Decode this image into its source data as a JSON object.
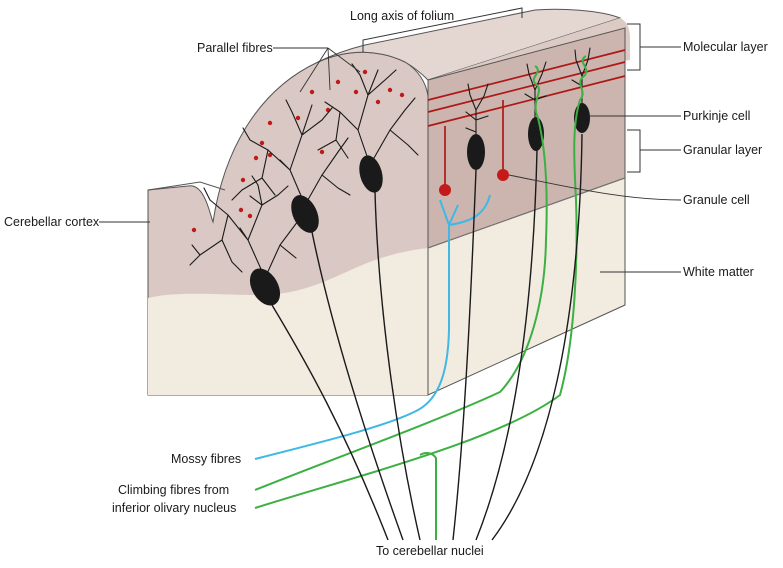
{
  "labels": {
    "long_axis": "Long axis of folium",
    "parallel_fibres": "Parallel fibres",
    "cerebellar_cortex": "Cerebellar cortex",
    "molecular_layer": "Molecular layer",
    "purkinje_cell": "Purkinje cell",
    "granular_layer": "Granular layer",
    "granule_cell": "Granule cell",
    "white_matter": "White matter",
    "mossy_fibres": "Mossy fibres",
    "climbing_fibres_line1": "Climbing fibres from",
    "climbing_fibres_line2": "inferior olivary nucleus",
    "to_nuclei": "To cerebellar nuclei"
  },
  "colors": {
    "cortex_grey": "#d9c8c3",
    "cortex_side": "#cbb5ae",
    "white_matter": "#f1ebe0",
    "parallel_fibre": "#b01818",
    "mossy_fibre": "#3fb8e6",
    "climbing_fibre": "#3cb043",
    "neuron": "#1a1a1a"
  }
}
